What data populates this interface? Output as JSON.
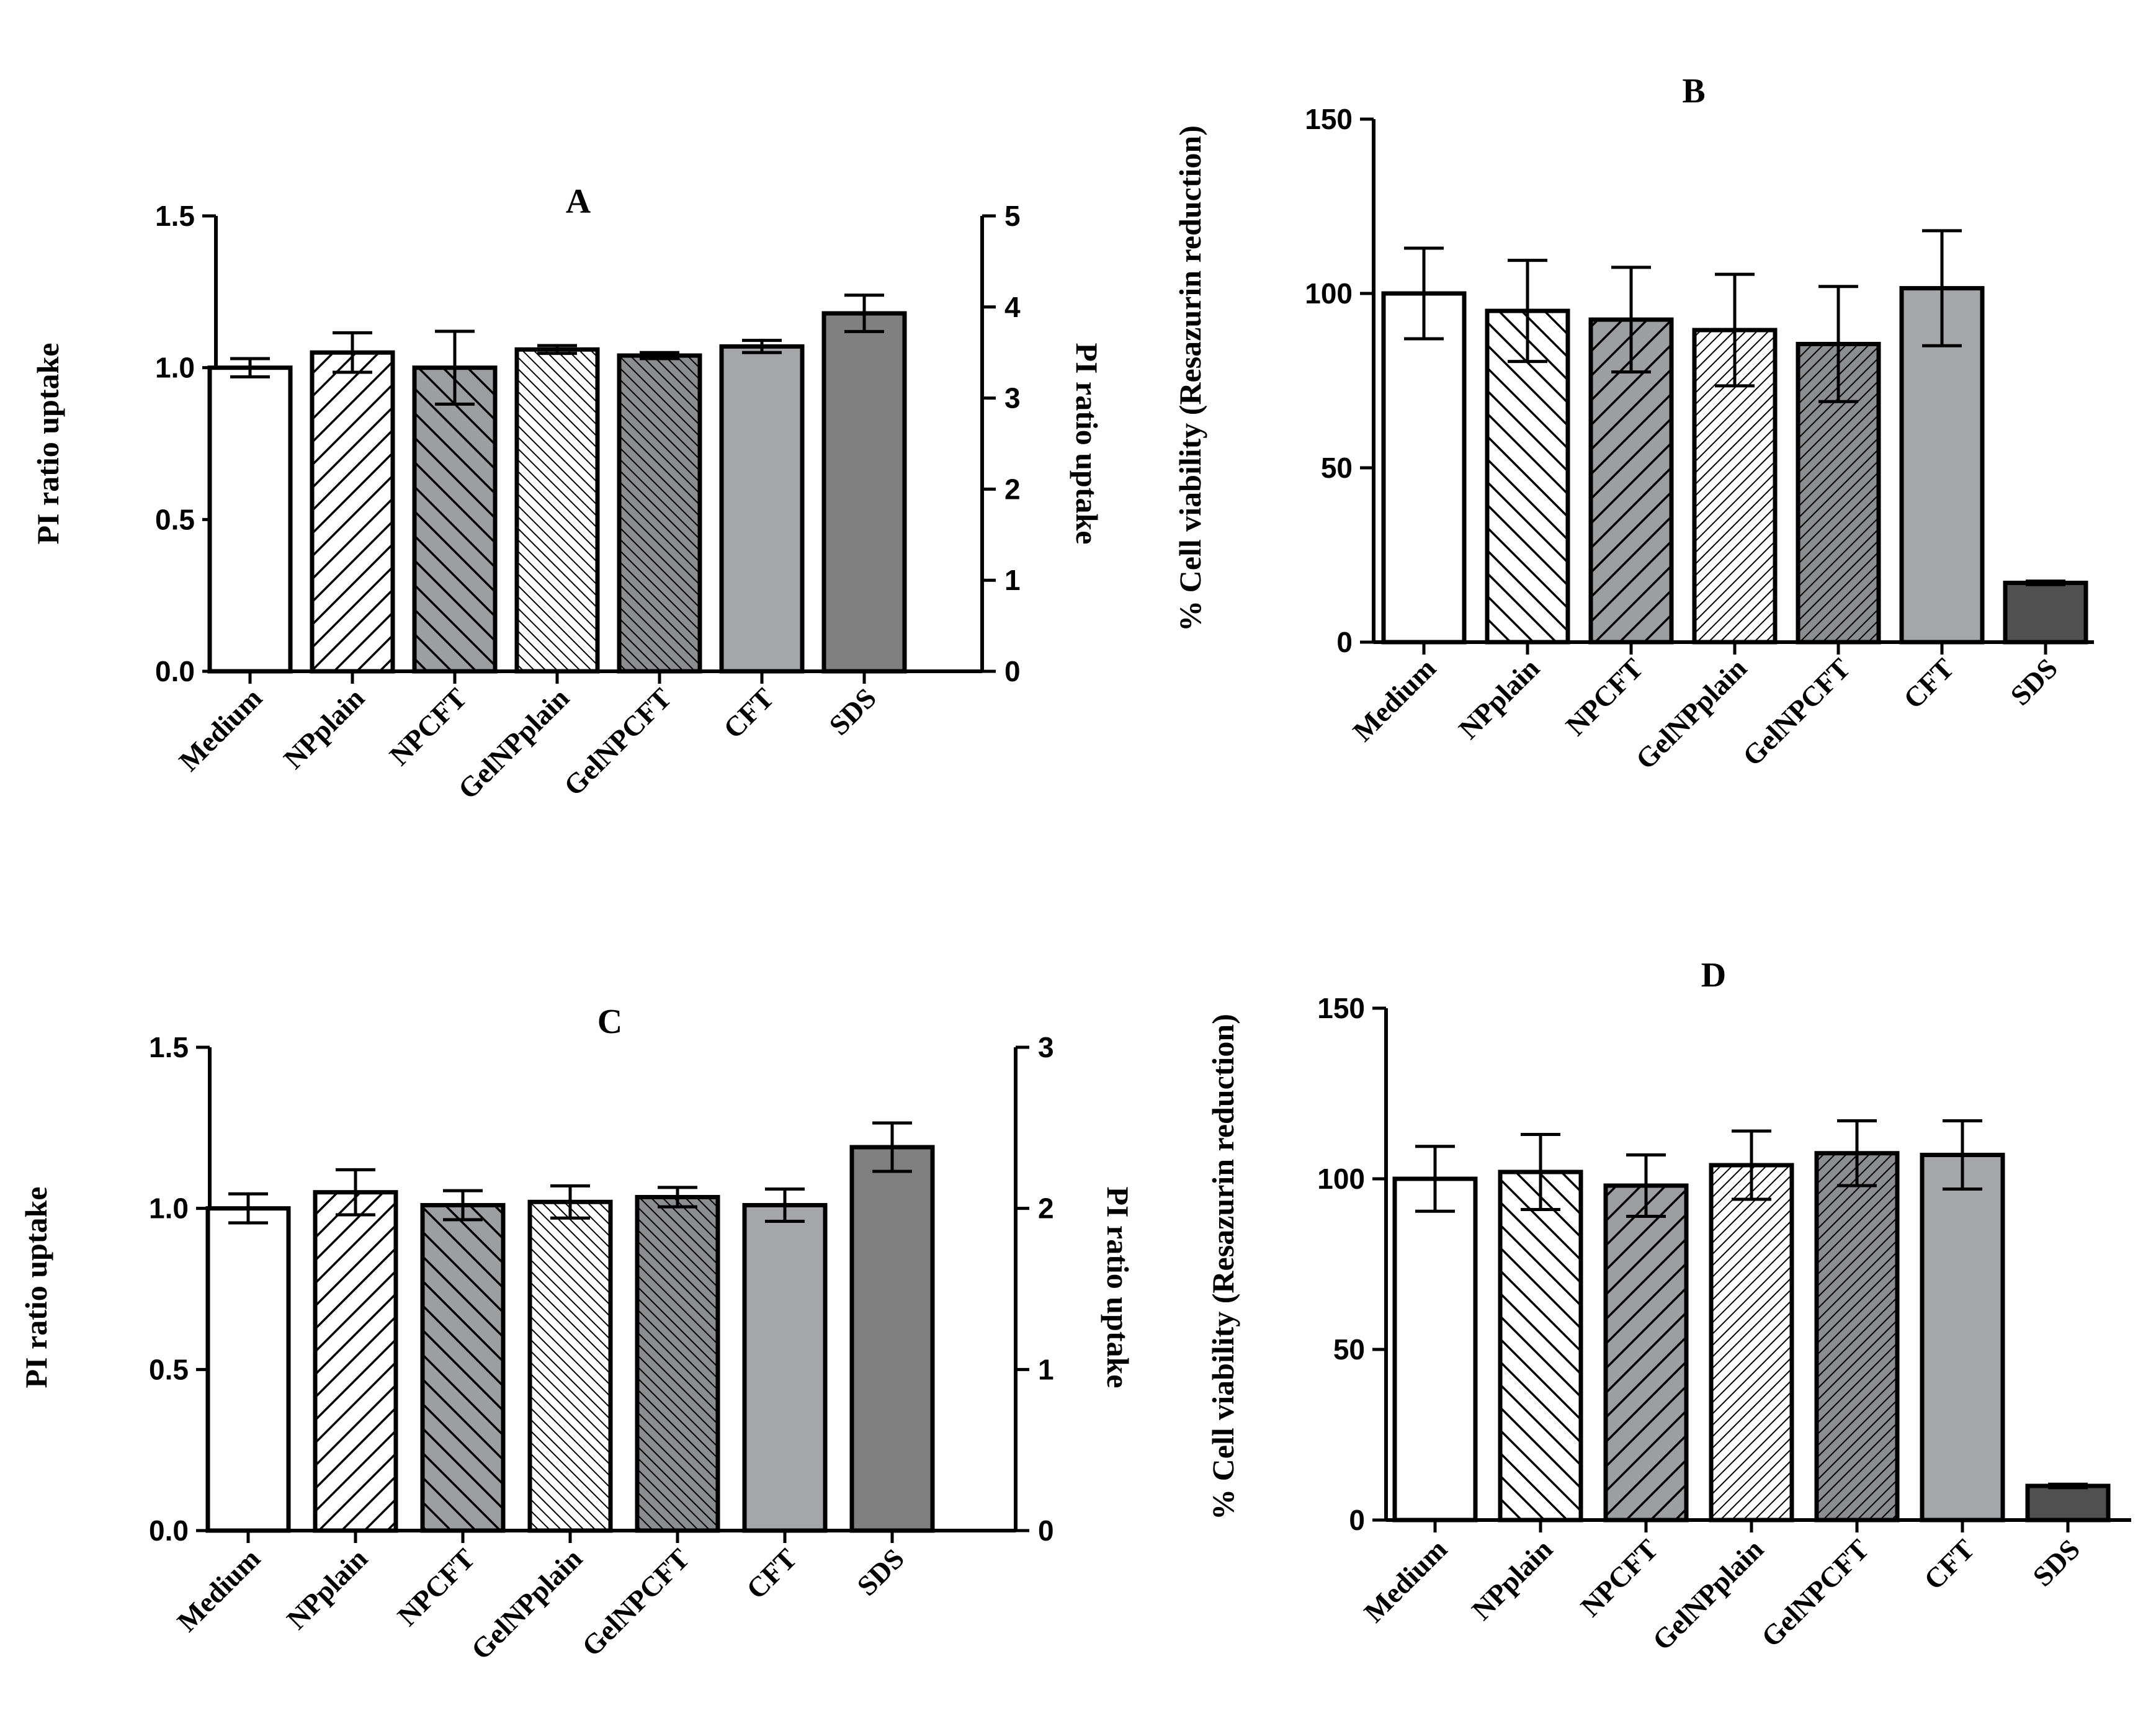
{
  "colors": {
    "medium": "#ffffff",
    "light_gray": "#a5a6a8",
    "mid_gray": "#9d9ea0",
    "sds": "#808080",
    "sds_dark": "#505050",
    "stroke": "#000000"
  },
  "chart_data": [
    {
      "panel": "A",
      "type": "bar",
      "title": "A",
      "ylabel": "PI ratio uptake",
      "ylabel_right": "PI ratio uptake",
      "ylim": [
        0,
        1.5
      ],
      "yticks": [
        "0.0",
        "0.5",
        "1.0",
        "1.5"
      ],
      "ylim_right": [
        0,
        5
      ],
      "yticks_right": [
        "0",
        "1",
        "2",
        "3",
        "4",
        "5"
      ],
      "categories": [
        "Medium",
        "NPplain",
        "NPCFT",
        "GelNPplain",
        "GelNPCFT",
        "CFT",
        "SDS"
      ],
      "values": [
        1.0,
        1.05,
        1.0,
        1.06,
        1.04,
        1.07,
        3.93
      ],
      "errors": [
        0.03,
        0.065,
        0.12,
        0.013,
        0.01,
        0.02,
        0.2
      ],
      "value_axis": [
        "left",
        "left",
        "left",
        "left",
        "left",
        "left",
        "right"
      ],
      "patterns": [
        "none",
        "diag-fwd",
        "diag-back-gray",
        "fine-back",
        "fine-back-gray",
        "solid-light",
        "solid-sds"
      ]
    },
    {
      "panel": "B",
      "type": "bar",
      "title": "B",
      "ylabel": "% Cell viability (Resazurin reduction)",
      "ylim": [
        0,
        150
      ],
      "yticks": [
        "0",
        "50",
        "100",
        "150"
      ],
      "categories": [
        "Medium",
        "NPplain",
        "NPCFT",
        "GelNPplain",
        "GelNPCFT",
        "CFT",
        "SDS"
      ],
      "values": [
        100,
        95,
        92.5,
        89.5,
        85.5,
        101.5,
        17
      ],
      "errors": [
        13,
        14.5,
        15,
        16,
        16.5,
        16.5,
        0.5
      ],
      "value_axis": [
        "left",
        "left",
        "left",
        "left",
        "left",
        "left",
        "left"
      ],
      "patterns": [
        "none",
        "diag-back",
        "diag-fwd-gray",
        "fine-fwd",
        "fine-fwd-gray",
        "solid-light",
        "solid-dark"
      ]
    },
    {
      "panel": "C",
      "type": "bar",
      "title": "C",
      "ylabel": "PI ratio uptake",
      "ylabel_right": "PI ratio uptake",
      "ylim": [
        0,
        1.5
      ],
      "yticks": [
        "0.0",
        "0.5",
        "1.0",
        "1.5"
      ],
      "ylim_right": [
        0,
        3
      ],
      "yticks_right": [
        "0",
        "1",
        "2",
        "3"
      ],
      "categories": [
        "Medium",
        "NPplain",
        "NPCFT",
        "GelNPplain",
        "GelNPCFT",
        "CFT",
        "SDS"
      ],
      "values": [
        1.0,
        1.05,
        1.01,
        1.02,
        1.035,
        1.01,
        2.38
      ],
      "errors": [
        0.045,
        0.07,
        0.045,
        0.05,
        0.03,
        0.05,
        0.15
      ],
      "value_axis": [
        "left",
        "left",
        "left",
        "left",
        "left",
        "left",
        "right"
      ],
      "patterns": [
        "none",
        "diag-fwd",
        "diag-back-gray",
        "fine-back",
        "fine-back-gray",
        "solid-light",
        "solid-sds"
      ]
    },
    {
      "panel": "D",
      "type": "bar",
      "title": "D",
      "ylabel": "% Cell viability (Resazurin reduction)",
      "ylim": [
        0,
        150
      ],
      "yticks": [
        "0",
        "50",
        "100",
        "150"
      ],
      "categories": [
        "Medium",
        "NPplain",
        "NPCFT",
        "GelNPplain",
        "GelNPCFT",
        "CFT",
        "SDS"
      ],
      "values": [
        100,
        102,
        98,
        104,
        107.5,
        107,
        10
      ],
      "errors": [
        9.5,
        11,
        9,
        10,
        9.5,
        10,
        0.5
      ],
      "value_axis": [
        "left",
        "left",
        "left",
        "left",
        "left",
        "left",
        "left"
      ],
      "patterns": [
        "none",
        "diag-back",
        "diag-fwd-gray",
        "fine-fwd",
        "fine-fwd-gray",
        "solid-light",
        "solid-dark"
      ]
    }
  ]
}
